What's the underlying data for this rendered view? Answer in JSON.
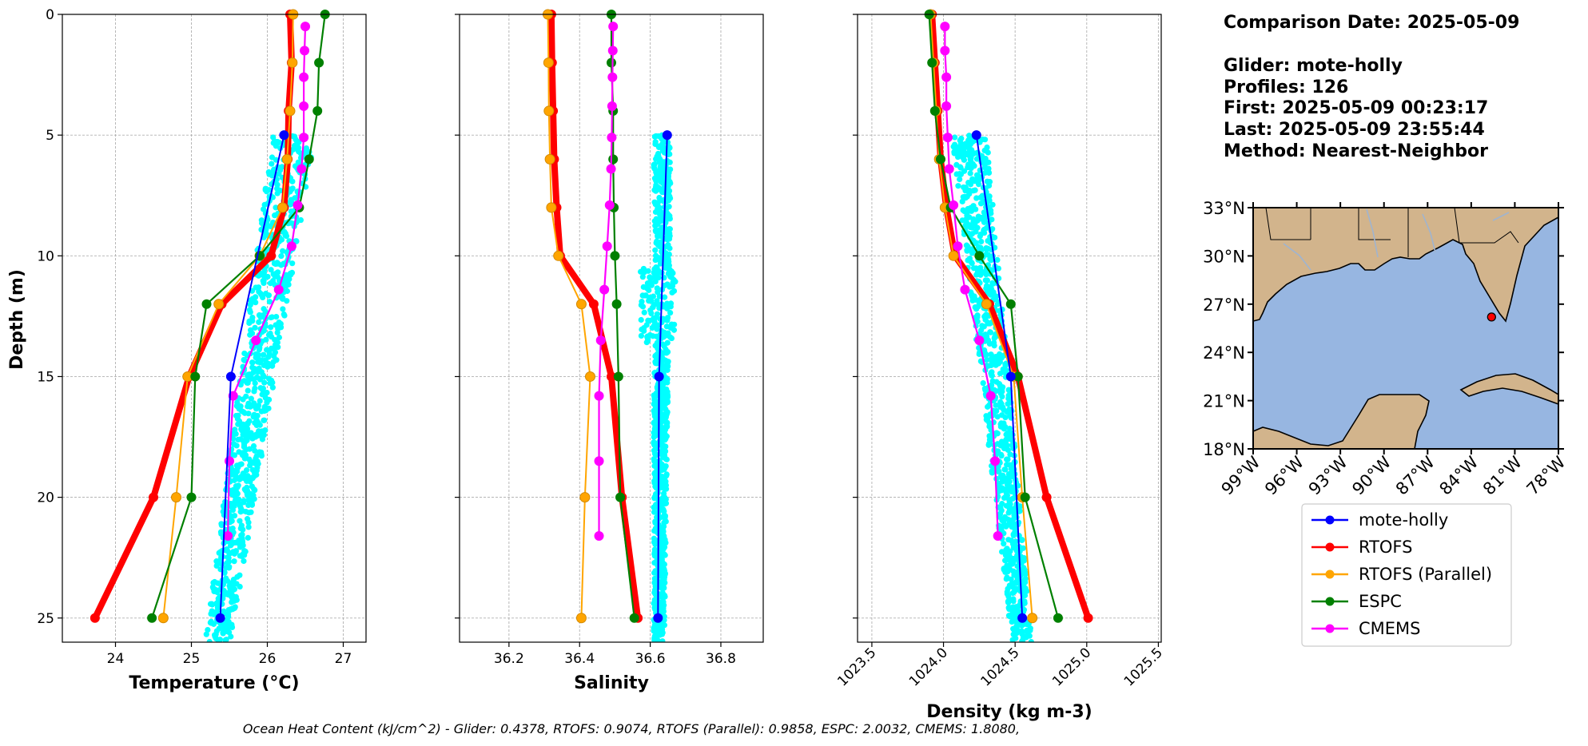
{
  "info": {
    "comparison_date": "Comparison Date: 2025-05-09",
    "glider": "Glider: mote-holly",
    "profiles": "Profiles: 126",
    "first": "First: 2025-05-09 00:23:17",
    "last": "Last: 2025-05-09 23:55:44",
    "method": "Method: Nearest-Neighbor"
  },
  "footer": "Ocean Heat Content (kJ/cm^2) - Glider: 0.4378,  RTOFS: 0.9074,  RTOFS (Parallel): 0.9858,  ESPC: 2.0032,  CMEMS: 1.8080,",
  "colors": {
    "glider": "#0000ff",
    "rtofs": "#ff0000",
    "rtofs_parallel": "#ffa500",
    "espc": "#008000",
    "cmems": "#ff00ff",
    "glider_raw": "#00ffff",
    "ocean": "#97b6e1",
    "land": "#d2b48c"
  },
  "legend": [
    {
      "key": "glider",
      "label": "mote-holly"
    },
    {
      "key": "rtofs",
      "label": "RTOFS"
    },
    {
      "key": "rtofs_parallel",
      "label": "RTOFS (Parallel)"
    },
    {
      "key": "espc",
      "label": "ESPC"
    },
    {
      "key": "cmems",
      "label": "CMEMS"
    }
  ],
  "map": {
    "lon_ticks": [
      "99°W",
      "96°W",
      "93°W",
      "90°W",
      "87°W",
      "84°W",
      "81°W",
      "78°W"
    ],
    "lat_ticks": [
      "33°N",
      "30°N",
      "27°N",
      "24°N",
      "21°N",
      "18°N"
    ],
    "lon_range": [
      -99,
      -78
    ],
    "lat_range": [
      18,
      33
    ],
    "glider_position": {
      "lon": -82.6,
      "lat": 26.2
    }
  },
  "chart_data": {
    "type": "line",
    "ylabel": "Depth (m)",
    "ylim": [
      26,
      0
    ],
    "y_ticks": [
      "0",
      "5",
      "10",
      "15",
      "20",
      "25"
    ],
    "grid": true,
    "legend_placement": "below map",
    "panels": [
      {
        "id": "temperature",
        "xlabel": "Temperature (°C)",
        "xlim": [
          23.3,
          27.3
        ],
        "x_ticks": [
          "24",
          "25",
          "26",
          "27"
        ],
        "raw": {
          "name": "glider raw",
          "depth_min": 5,
          "depth_max": 26,
          "x_at_top": 26.35,
          "x_at_bottom": 25.35,
          "spread": 0.28
        },
        "series": [
          {
            "key": "glider",
            "depth": [
              5,
              15,
              25
            ],
            "x": [
              26.22,
              25.52,
              25.38
            ]
          },
          {
            "key": "rtofs",
            "depth": [
              0,
              2,
              4,
              6,
              8,
              10,
              12,
              15,
              20,
              25
            ],
            "x": [
              26.3,
              26.32,
              26.28,
              26.27,
              26.22,
              26.05,
              25.4,
              24.97,
              24.5,
              23.73
            ]
          },
          {
            "key": "rtofs_parallel",
            "depth": [
              0,
              2,
              4,
              6,
              8,
              10,
              12,
              15,
              20,
              25
            ],
            "x": [
              26.34,
              26.33,
              26.3,
              26.26,
              26.2,
              25.9,
              25.36,
              24.95,
              24.8,
              24.63
            ]
          },
          {
            "key": "espc",
            "depth": [
              0,
              2,
              4,
              6,
              8,
              10,
              12,
              15,
              20,
              25
            ],
            "x": [
              26.76,
              26.68,
              26.66,
              26.55,
              26.42,
              25.9,
              25.2,
              25.05,
              25.0,
              24.48
            ]
          },
          {
            "key": "cmems",
            "depth": [
              0.5,
              1.5,
              2.6,
              3.8,
              5.1,
              6.4,
              7.9,
              9.6,
              11.4,
              13.5,
              15.8,
              18.5,
              21.6
            ],
            "x": [
              26.5,
              26.49,
              26.48,
              26.48,
              26.48,
              26.45,
              26.4,
              26.32,
              26.15,
              25.85,
              25.55,
              25.5,
              25.48
            ]
          }
        ]
      },
      {
        "id": "salinity",
        "xlabel": "Salinity",
        "xlim": [
          36.06,
          36.92
        ],
        "x_ticks": [
          "36.2",
          "36.4",
          "36.6",
          "36.8"
        ],
        "raw": {
          "name": "glider raw",
          "depth_min": 5,
          "depth_max": 26,
          "x_at_top": 36.635,
          "x_at_bottom": 36.625,
          "spread": 0.025
        },
        "series": [
          {
            "key": "glider",
            "depth": [
              5,
              15,
              25
            ],
            "x": [
              36.648,
              36.625,
              36.622
            ]
          },
          {
            "key": "rtofs",
            "depth": [
              0,
              2,
              4,
              6,
              8,
              10,
              12,
              15,
              20,
              25
            ],
            "x": [
              36.32,
              36.322,
              36.325,
              36.328,
              36.335,
              36.345,
              36.44,
              36.49,
              36.52,
              36.565
            ]
          },
          {
            "key": "rtofs_parallel",
            "depth": [
              0,
              2,
              4,
              6,
              8,
              10,
              12,
              15,
              20,
              25
            ],
            "x": [
              36.31,
              36.312,
              36.313,
              36.316,
              36.32,
              36.34,
              36.405,
              36.43,
              36.415,
              36.405
            ]
          },
          {
            "key": "espc",
            "depth": [
              0,
              2,
              4,
              6,
              8,
              10,
              12,
              15,
              20,
              25
            ],
            "x": [
              36.49,
              36.49,
              36.495,
              36.495,
              36.497,
              36.5,
              36.505,
              36.51,
              36.515,
              36.555
            ]
          },
          {
            "key": "cmems",
            "depth": [
              0.5,
              1.5,
              2.6,
              3.8,
              5.1,
              6.4,
              7.9,
              9.6,
              11.4,
              13.5,
              15.8,
              18.5,
              21.6
            ],
            "x": [
              36.495,
              36.494,
              36.493,
              36.492,
              36.491,
              36.489,
              36.485,
              36.478,
              36.47,
              36.46,
              36.455,
              36.455,
              36.455
            ]
          }
        ]
      },
      {
        "id": "density",
        "xlabel": "Density (kg m-3)",
        "xlim": [
          1023.4,
          1025.52
        ],
        "x_ticks": [
          "1023.5",
          "1024.0",
          "1024.5",
          "1025.0",
          "1025.5"
        ],
        "x_tick_values": [
          1023.5,
          1024.0,
          1024.5,
          1025.0,
          1025.5
        ],
        "raw": {
          "name": "glider raw",
          "depth_min": 5,
          "depth_max": 26,
          "x_at_top": 1024.18,
          "x_at_bottom": 1024.55,
          "spread": 0.12
        },
        "series": [
          {
            "key": "glider",
            "depth": [
              5,
              15,
              25
            ],
            "x": [
              1024.23,
              1024.47,
              1024.55
            ]
          },
          {
            "key": "rtofs",
            "depth": [
              0,
              2,
              4,
              6,
              8,
              10,
              12,
              15,
              20,
              25
            ],
            "x": [
              1023.92,
              1023.94,
              1023.96,
              1023.98,
              1024.02,
              1024.08,
              1024.32,
              1024.52,
              1024.72,
              1025.01
            ]
          },
          {
            "key": "rtofs_parallel",
            "depth": [
              0,
              2,
              4,
              6,
              8,
              10,
              12,
              15,
              20,
              25
            ],
            "x": [
              1023.91,
              1023.93,
              1023.95,
              1023.97,
              1024.01,
              1024.07,
              1024.3,
              1024.49,
              1024.55,
              1024.62
            ]
          },
          {
            "key": "espc",
            "depth": [
              0,
              2,
              4,
              6,
              8,
              10,
              12,
              15,
              20,
              25
            ],
            "x": [
              1023.9,
              1023.92,
              1023.94,
              1023.98,
              1024.05,
              1024.25,
              1024.47,
              1024.52,
              1024.57,
              1024.8
            ]
          },
          {
            "key": "cmems",
            "depth": [
              0.5,
              1.5,
              2.6,
              3.8,
              5.1,
              6.4,
              7.9,
              9.6,
              11.4,
              13.5,
              15.8,
              18.5,
              21.6
            ],
            "x": [
              1024.01,
              1024.01,
              1024.02,
              1024.02,
              1024.03,
              1024.04,
              1024.07,
              1024.1,
              1024.15,
              1024.25,
              1024.33,
              1024.36,
              1024.38
            ]
          }
        ]
      }
    ]
  }
}
